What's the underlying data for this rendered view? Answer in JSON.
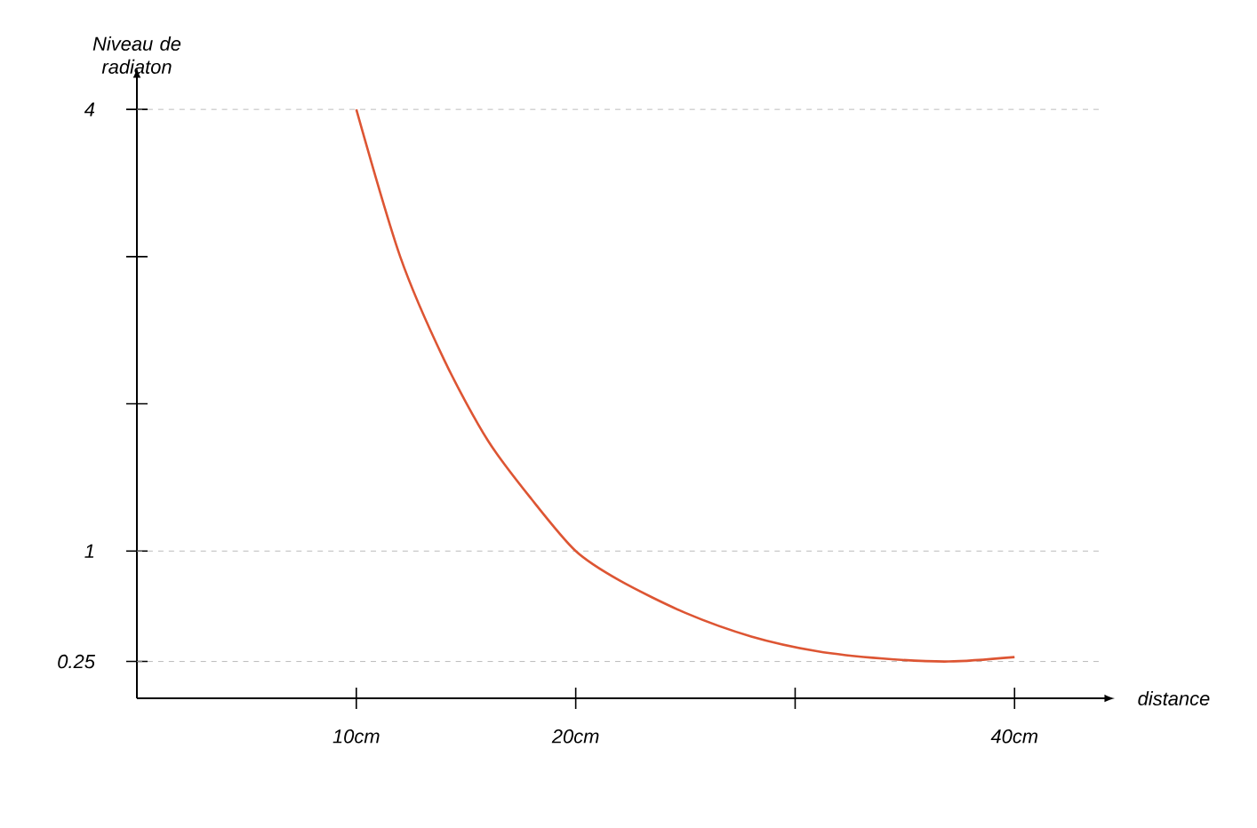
{
  "chart_data": {
    "type": "line",
    "xlabel": "distance",
    "ylabel": "Niveau de radiaton",
    "x": [
      10,
      12,
      14,
      16,
      18,
      20,
      22,
      25,
      28,
      31,
      34,
      37,
      40
    ],
    "series": [
      {
        "color": "#dd5533",
        "values": [
          4,
          3.0,
          2.3,
          1.75,
          1.35,
          1.0,
          0.8,
          0.58,
          0.42,
          0.32,
          0.27,
          0.25,
          0.28
        ]
      }
    ],
    "xlim": [
      0,
      44
    ],
    "ylim": [
      0,
      4.2
    ],
    "xticks": [
      {
        "value": 10,
        "label": "10cm"
      },
      {
        "value": 20,
        "label": "20cm"
      },
      {
        "value": 30,
        "label": null
      },
      {
        "value": 40,
        "label": "40cm"
      }
    ],
    "yticks": [
      0.25,
      1,
      {
        "value": 2,
        "label": null
      },
      {
        "value": 3,
        "label": null
      },
      4
    ],
    "ref_lines": [
      {
        "axis": "y",
        "value": 4,
        "line_style": "dashed",
        "color": "#aaaaaa"
      },
      {
        "axis": "y",
        "value": 1,
        "line_style": "dashed",
        "color": "#aaaaaa"
      },
      {
        "axis": "y",
        "value": 0.25,
        "line_style": "dashed",
        "color": "#aaaaaa"
      }
    ],
    "grid": false,
    "marker": "none",
    "line_style": "solid"
  }
}
